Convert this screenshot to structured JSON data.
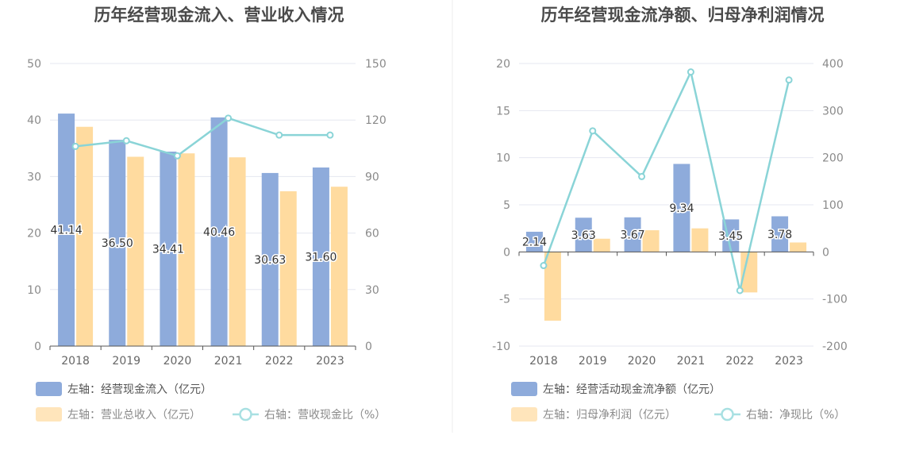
{
  "colors": {
    "bar_primary": "#8eabdb",
    "bar_secondary": "#ffdb9f",
    "line": "#8ad4d7",
    "grid": "#e5e7f0",
    "axis": "#555555",
    "legend_text": "#666666"
  },
  "chart_data": [
    {
      "type": "bar",
      "title": "历年经营现金流入、营业收入情况",
      "categories": [
        "2018",
        "2019",
        "2020",
        "2021",
        "2022",
        "2023"
      ],
      "left_axis": {
        "ylim": [
          0,
          50
        ],
        "ticks": [
          "0",
          "10",
          "20",
          "30",
          "40",
          "50"
        ]
      },
      "right_axis": {
        "ylim": [
          0,
          150
        ],
        "ticks": [
          "0",
          "30",
          "60",
          "90",
          "120",
          "150"
        ]
      },
      "grid": true,
      "legend_position": "bottom",
      "series": [
        {
          "name": "左轴：经营现金流入（亿元）",
          "type": "bar",
          "axis": "left",
          "values": [
            41.14,
            36.5,
            34.41,
            40.46,
            30.63,
            31.6
          ],
          "labels": [
            "41.14",
            "36.50",
            "34.41",
            "40.46",
            "30.63",
            "31.60"
          ]
        },
        {
          "name": "左轴：营业总收入（亿元）",
          "type": "bar",
          "axis": "left",
          "values": [
            38.8,
            33.5,
            34.1,
            33.4,
            27.4,
            28.2
          ]
        },
        {
          "name": "右轴：营收现金比（%）",
          "type": "line",
          "axis": "right",
          "values": [
            106,
            109,
            101,
            121,
            112,
            112
          ]
        }
      ]
    },
    {
      "type": "bar",
      "title": "历年经营现金流净额、归母净利润情况",
      "categories": [
        "2018",
        "2019",
        "2020",
        "2021",
        "2022",
        "2023"
      ],
      "left_axis": {
        "ylim": [
          -10,
          20
        ],
        "ticks": [
          "-10",
          "-5",
          "0",
          "5",
          "10",
          "15",
          "20"
        ]
      },
      "right_axis": {
        "ylim": [
          -200,
          400
        ],
        "ticks": [
          "-200",
          "-100",
          "0",
          "100",
          "200",
          "300",
          "400"
        ]
      },
      "grid": true,
      "legend_position": "bottom",
      "series": [
        {
          "name": "左轴：经营活动现金流净额（亿元）",
          "type": "bar",
          "axis": "left",
          "values": [
            2.14,
            3.63,
            3.67,
            9.34,
            3.45,
            3.78
          ],
          "labels": [
            "2.14",
            "3.63",
            "3.67",
            "9.34",
            "3.45",
            "3.78"
          ]
        },
        {
          "name": "左轴：归母净利润（亿元）",
          "type": "bar",
          "axis": "left",
          "values": [
            -7.3,
            1.4,
            2.3,
            2.5,
            -4.3,
            1.0
          ]
        },
        {
          "name": "右轴：净现比（%）",
          "type": "line",
          "axis": "right",
          "values": [
            -29,
            257,
            160,
            382,
            -82,
            365
          ]
        }
      ]
    }
  ]
}
